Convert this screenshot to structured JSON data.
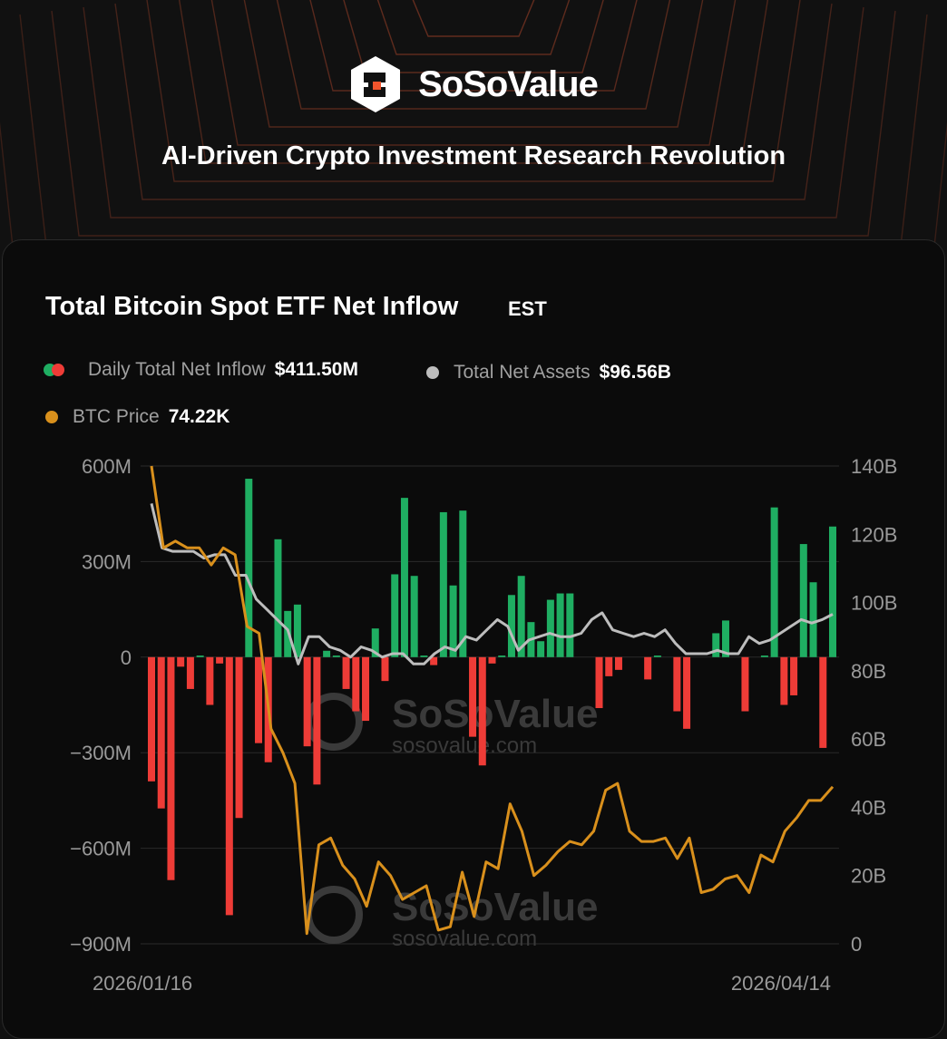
{
  "brand": {
    "name": "SoSoValue",
    "tagline": "AI-Driven Crypto Investment Research Revolution",
    "logo_icon": "sosovalue-logo-icon"
  },
  "colors": {
    "accent": "#f0542d",
    "inflow": "#1fae62",
    "outflow": "#ee3c37",
    "btc": "#d9901c",
    "assets": "#bdbdbd",
    "background": "#0b0b0b"
  },
  "legend": {
    "daily_label": "Daily Total Net Inflow",
    "daily_value": "$411.50M",
    "assets_label": "Total Net Assets",
    "assets_value": "$96.56B",
    "btc_label": "BTC Price",
    "btc_value": "74.22K"
  },
  "chart_data": {
    "type": "bar",
    "title": "Total Bitcoin Spot ETF Net Inflow",
    "timezone": "EST",
    "x_start_label": "2026/01/16",
    "x_end_label": "2026/04/14",
    "y_left": {
      "ticks": [
        "600M",
        "300M",
        "0",
        "−300M",
        "−600M",
        "−900M"
      ],
      "tick_values": [
        600,
        300,
        0,
        -300,
        -600,
        -900
      ],
      "range": [
        -900,
        600
      ],
      "unit": "M"
    },
    "y_right": {
      "ticks": [
        "140B",
        "120B",
        "100B",
        "80B",
        "60B",
        "40B",
        "20B",
        "0"
      ],
      "tick_values": [
        140,
        120,
        100,
        80,
        60,
        40,
        20,
        0
      ],
      "range": [
        0,
        140
      ],
      "unit": "B"
    },
    "grid": true,
    "watermark": [
      "SoSoValue",
      "sosovalue.com"
    ],
    "series": [
      {
        "name": "Daily Total Net Inflow",
        "type": "bar",
        "unit": "M",
        "values": [
          -390,
          -475,
          -700,
          -30,
          -100,
          5,
          -150,
          -20,
          -810,
          -505,
          560,
          -270,
          -330,
          370,
          145,
          165,
          -280,
          -400,
          20,
          5,
          -100,
          -170,
          -200,
          90,
          -75,
          260,
          500,
          255,
          5,
          -25,
          455,
          225,
          460,
          -250,
          -340,
          -20,
          5,
          195,
          255,
          110,
          50,
          180,
          200,
          200,
          0,
          0,
          -160,
          -60,
          -40,
          0,
          0,
          -70,
          5,
          0,
          -170,
          -225,
          0,
          0,
          75,
          115,
          0,
          -170,
          0,
          5,
          470,
          -150,
          -120,
          355,
          235,
          -285,
          410
        ]
      },
      {
        "name": "Total Net Assets",
        "type": "line",
        "unit": "B",
        "values": [
          129,
          116,
          115,
          115,
          115,
          113,
          114,
          114,
          108,
          108,
          101,
          98,
          95,
          92,
          82,
          90,
          90,
          87,
          86,
          84,
          87,
          86,
          84,
          85,
          85,
          82,
          82,
          85,
          87,
          86,
          90,
          89,
          92,
          95,
          93,
          86,
          89,
          90,
          91,
          90,
          90,
          91,
          95,
          97,
          92,
          91,
          90,
          91,
          90,
          92,
          88,
          85,
          85,
          85,
          86,
          85,
          85,
          90,
          88,
          89,
          91,
          93,
          95,
          94,
          95,
          96.56
        ]
      },
      {
        "name": "BTC Price",
        "type": "line",
        "unit": "K",
        "values": [
          140,
          116,
          118,
          116,
          116,
          111,
          116,
          114,
          93,
          91,
          63,
          56,
          47,
          3,
          29,
          31,
          23,
          19,
          11,
          24,
          20,
          13,
          15,
          17,
          4,
          5,
          21,
          8,
          24,
          22,
          41,
          33,
          20,
          23,
          27,
          30,
          29,
          33,
          45,
          47,
          33,
          30,
          30,
          31,
          25,
          31,
          15,
          16,
          19,
          20,
          15,
          26,
          24,
          33,
          37,
          42,
          42,
          46
        ]
      }
    ]
  }
}
